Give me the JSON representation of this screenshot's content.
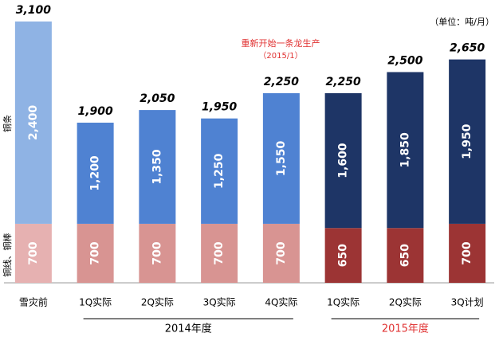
{
  "chart_data": {
    "type": "stacked_bar",
    "categories": [
      "雪灾前",
      "1Q实际",
      "2Q实际",
      "3Q实际",
      "4Q实际",
      "1Q实际",
      "2Q实际",
      "3Q计划"
    ],
    "series": [
      {
        "name": "铜线、铜棒",
        "values": [
          700,
          700,
          700,
          700,
          700,
          650,
          650,
          700
        ],
        "colors": [
          "#e6b1b1",
          "#d89492",
          "#d89492",
          "#d89492",
          "#d89492",
          "#9c3434",
          "#9c3434",
          "#9c3434"
        ]
      },
      {
        "name": "铜条",
        "values": [
          2400,
          1200,
          1350,
          1250,
          1550,
          1600,
          1850,
          1950
        ],
        "value_labels": [
          "2,400",
          "1,200",
          "1,350",
          "1,250",
          "1,550",
          "1,600",
          "1,850",
          "1,950"
        ],
        "colors": [
          "#8fb3e4",
          "#4f82d2",
          "#4f82d2",
          "#4f82d2",
          "#4f82d2",
          "#1e3566",
          "#1e3566",
          "#1e3566"
        ]
      }
    ],
    "totals": {
      "values": [
        3100,
        1900,
        2050,
        1950,
        2250,
        2250,
        2500,
        2650
      ],
      "value_labels": [
        "3,100",
        "1,900",
        "2,050",
        "1,950",
        "2,250",
        "2,250",
        "2,500",
        "2,650"
      ]
    },
    "groups": [
      {
        "label": "2014年度",
        "color": "#000000"
      },
      {
        "label": "2015年度",
        "color": "#e03030"
      }
    ],
    "annotation": [
      "重新开始一条龙生产",
      "（2015/1）"
    ],
    "annotation_color": "#e03030",
    "unit": "（单位：吨/月）",
    "ylim": [
      0,
      3100
    ]
  }
}
